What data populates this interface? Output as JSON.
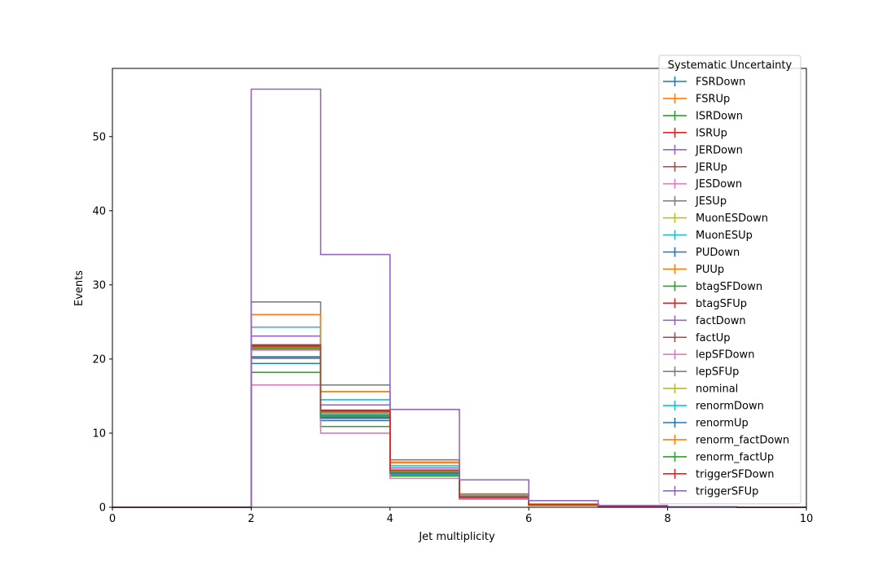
{
  "chart_data": {
    "type": "line",
    "subtype": "step-histogram",
    "title": "",
    "xlabel": "Jet multiplicity",
    "ylabel": "Events",
    "xlim": [
      0,
      10
    ],
    "ylim": [
      0,
      59.2
    ],
    "xticks": [
      0,
      2,
      4,
      6,
      8,
      10
    ],
    "yticks": [
      0,
      10,
      20,
      30,
      40,
      50
    ],
    "grid": false,
    "legend": {
      "title": "Systematic Uncertainty",
      "placement": "top-right"
    },
    "bin_edges": [
      0,
      1,
      2,
      3,
      4,
      5,
      6,
      7,
      8,
      9,
      10
    ],
    "series": [
      {
        "name": "FSRDown",
        "color": "#1f77b4",
        "values": [
          0,
          0,
          21.4,
          12.4,
          4.7,
          1.3,
          0.3,
          0.1,
          0.03,
          0,
          0
        ]
      },
      {
        "name": "FSRUp",
        "color": "#ff7f0e",
        "values": [
          0,
          0,
          21.6,
          12.6,
          4.8,
          1.4,
          0.35,
          0.1,
          0.03,
          0,
          0
        ]
      },
      {
        "name": "ISRDown",
        "color": "#2ca02c",
        "values": [
          0,
          0,
          21.3,
          12.3,
          4.6,
          1.3,
          0.3,
          0.1,
          0.03,
          0,
          0
        ]
      },
      {
        "name": "ISRUp",
        "color": "#d62728",
        "values": [
          0,
          0,
          21.8,
          12.8,
          4.9,
          1.4,
          0.35,
          0.1,
          0.03,
          0,
          0
        ]
      },
      {
        "name": "JERDown",
        "color": "#9467bd",
        "values": [
          0,
          0,
          21.5,
          12.5,
          4.8,
          1.3,
          0.3,
          0.1,
          0.03,
          0,
          0
        ]
      },
      {
        "name": "JERUp",
        "color": "#8c564b",
        "values": [
          0,
          0,
          21.7,
          12.6,
          4.8,
          1.4,
          0.35,
          0.1,
          0.03,
          0,
          0
        ]
      },
      {
        "name": "JESDown",
        "color": "#e377c2",
        "values": [
          0,
          0,
          21.2,
          12.2,
          4.6,
          1.3,
          0.3,
          0.1,
          0.03,
          0,
          0
        ]
      },
      {
        "name": "JESUp",
        "color": "#7f7f7f",
        "values": [
          0,
          0,
          21.9,
          12.9,
          5.0,
          1.4,
          0.35,
          0.1,
          0.03,
          0,
          0
        ]
      },
      {
        "name": "MuonESDown",
        "color": "#bcbd22",
        "values": [
          0,
          0,
          21.5,
          12.5,
          4.8,
          1.35,
          0.3,
          0.1,
          0.03,
          0,
          0
        ]
      },
      {
        "name": "MuonESUp",
        "color": "#17becf",
        "values": [
          0,
          0,
          21.6,
          12.5,
          4.8,
          1.35,
          0.3,
          0.1,
          0.03,
          0,
          0
        ]
      },
      {
        "name": "PUDown",
        "color": "#1f77b4",
        "values": [
          0,
          0,
          19.4,
          11.7,
          4.4,
          1.2,
          0.3,
          0.1,
          0.03,
          0,
          0
        ]
      },
      {
        "name": "PUUp",
        "color": "#ff7f0e",
        "values": [
          0,
          0,
          26.0,
          15.6,
          6.1,
          1.7,
          0.45,
          0.12,
          0.03,
          0,
          0
        ]
      },
      {
        "name": "btagSFDown",
        "color": "#2ca02c",
        "values": [
          0,
          0,
          18.2,
          10.9,
          4.2,
          1.1,
          0.3,
          0.1,
          0.03,
          0,
          0
        ]
      },
      {
        "name": "btagSFUp",
        "color": "#d62728",
        "values": [
          0,
          0,
          21.6,
          13.0,
          5.0,
          1.4,
          0.35,
          0.1,
          0.03,
          0,
          0
        ]
      },
      {
        "name": "factDown",
        "color": "#9467bd",
        "values": [
          0,
          0,
          23.1,
          13.8,
          5.3,
          1.5,
          0.4,
          0.1,
          0.03,
          0,
          0
        ]
      },
      {
        "name": "factUp",
        "color": "#8c564b",
        "values": [
          0,
          0,
          20.1,
          12.0,
          4.6,
          1.3,
          0.3,
          0.1,
          0.03,
          0,
          0
        ]
      },
      {
        "name": "lepSFDown",
        "color": "#e377c2",
        "values": [
          0,
          0,
          16.5,
          10.0,
          3.9,
          1.1,
          0.25,
          0.08,
          0.02,
          0,
          0
        ]
      },
      {
        "name": "lepSFUp",
        "color": "#7f7f7f",
        "values": [
          0,
          0,
          27.7,
          16.5,
          6.4,
          1.8,
          0.45,
          0.12,
          0.03,
          0,
          0
        ]
      },
      {
        "name": "nominal",
        "color": "#bcbd22",
        "values": [
          0,
          0,
          21.5,
          12.7,
          4.8,
          1.35,
          0.3,
          0.1,
          0.03,
          0,
          0
        ]
      },
      {
        "name": "renormDown",
        "color": "#17becf",
        "values": [
          0,
          0,
          24.3,
          14.5,
          5.6,
          1.6,
          0.4,
          0.11,
          0.03,
          0,
          0
        ]
      },
      {
        "name": "renormUp",
        "color": "#1f77b4",
        "values": [
          0,
          0,
          20.3,
          12.1,
          4.7,
          1.3,
          0.3,
          0.1,
          0.03,
          0,
          0
        ]
      },
      {
        "name": "renorm_factDown",
        "color": "#ff7f0e",
        "values": [
          0,
          0,
          26.0,
          15.6,
          6.0,
          1.7,
          0.45,
          0.12,
          0.03,
          0,
          0
        ]
      },
      {
        "name": "renorm_factUp",
        "color": "#2ca02c",
        "values": [
          0,
          0,
          21.4,
          12.3,
          4.6,
          1.3,
          0.3,
          0.1,
          0.03,
          0,
          0
        ]
      },
      {
        "name": "triggerSFDown",
        "color": "#d62728",
        "values": [
          0,
          0,
          21.9,
          13.1,
          5.0,
          1.4,
          0.35,
          0.1,
          0.03,
          0,
          0
        ]
      },
      {
        "name": "triggerSFUp",
        "color": "#9467bd",
        "values": [
          0,
          0,
          56.4,
          34.1,
          13.2,
          3.7,
          0.9,
          0.25,
          0.07,
          0,
          0
        ]
      }
    ]
  }
}
